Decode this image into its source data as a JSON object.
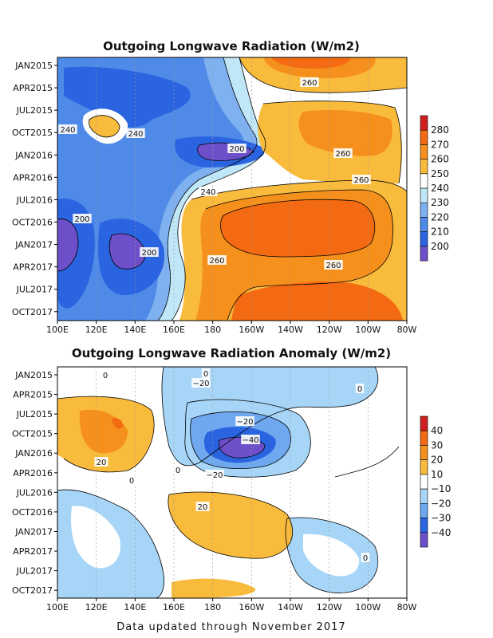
{
  "footer": "Data updated through November 2017",
  "chart_data": [
    {
      "type": "heatmap",
      "title": "Outgoing Longwave Radiation (W/m2)",
      "x_ticks": [
        "100E",
        "120E",
        "140E",
        "160E",
        "180",
        "160W",
        "140W",
        "120W",
        "100W",
        "80W"
      ],
      "y_ticks": [
        "JAN2015",
        "APR2015",
        "JUL2015",
        "OCT2015",
        "JAN2016",
        "APR2016",
        "JUL2016",
        "OCT2016",
        "JAN2017",
        "APR2017",
        "JUL2017",
        "OCT2017"
      ],
      "legend_labels": [
        "200",
        "210",
        "220",
        "230",
        "240",
        "250",
        "260",
        "270",
        "280"
      ],
      "legend_colors": [
        "#6d50c9",
        "#2b64e0",
        "#4f8ae9",
        "#7fb0f0",
        "#bfe7f7",
        "#ffffff",
        "#f9bb3c",
        "#f6901c",
        "#f36a12",
        "#cf1f1f"
      ],
      "contour_labels": [
        "240",
        "240",
        "200",
        "260",
        "240",
        "260",
        "200",
        "200",
        "260",
        "260",
        "260"
      ],
      "grid": true,
      "legend": "right"
    },
    {
      "type": "heatmap",
      "title": "Outgoing Longwave Radiation Anomaly (W/m2)",
      "x_ticks": [
        "100E",
        "120E",
        "140E",
        "160E",
        "180",
        "160W",
        "140W",
        "120W",
        "100W",
        "80W"
      ],
      "y_ticks": [
        "JAN2015",
        "APR2015",
        "JUL2015",
        "OCT2015",
        "JAN2016",
        "APR2016",
        "JUL2016",
        "OCT2016",
        "JAN2017",
        "APR2017",
        "JUL2017",
        "OCT2017"
      ],
      "legend_labels": [
        "40",
        "30",
        "20",
        "10",
        "−10",
        "−20",
        "−30",
        "−40"
      ],
      "legend_colors": [
        "#cf1f1f",
        "#f36a12",
        "#f6901c",
        "#f9bb3c",
        "#ffffff",
        "#a6d5f7",
        "#6fa8ef",
        "#2b64e0",
        "#6d50c9"
      ],
      "contour_labels": [
        "0",
        "0",
        "−20",
        "0",
        "−20",
        "−40",
        "20",
        "0",
        "−20",
        "0",
        "20",
        "0"
      ],
      "grid": true,
      "legend": "right"
    }
  ]
}
